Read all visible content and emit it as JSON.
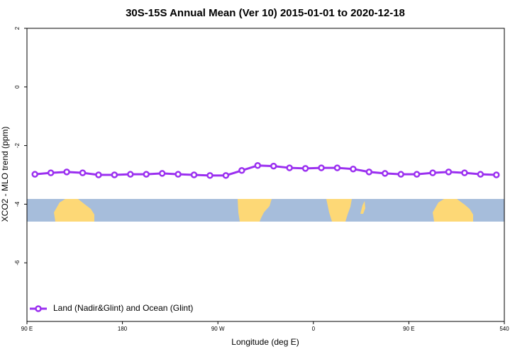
{
  "chart_data": {
    "type": "line",
    "title": "30S-15S Annual Mean (Ver 10)   2015-01-01 to 2020-12-18",
    "xlabel": "Longitude (deg E)",
    "ylabel": "XCO2 - MLO trend (ppm)",
    "x": [
      97.5,
      112.5,
      127.5,
      142.5,
      157.5,
      172.5,
      187.5,
      202.5,
      217.5,
      232.5,
      247.5,
      262.5,
      277.5,
      292.5,
      307.5,
      322.5,
      337.5,
      352.5,
      367.5,
      382.5,
      397.5,
      412.5,
      427.5,
      442.5,
      457.5,
      472.5,
      487.5,
      502.5,
      517.5,
      532.5
    ],
    "series": [
      {
        "name": "Land (Nadir&Glint) and Ocean (Glint)",
        "color": "#9b30f0",
        "values": [
          -2.98,
          -2.93,
          -2.9,
          -2.93,
          -3.0,
          -3.0,
          -2.98,
          -2.98,
          -2.95,
          -2.98,
          -3.0,
          -3.02,
          -3.02,
          -2.85,
          -2.68,
          -2.7,
          -2.76,
          -2.78,
          -2.76,
          -2.76,
          -2.8,
          -2.9,
          -2.95,
          -2.98,
          -2.98,
          -2.93,
          -2.9,
          -2.93,
          -2.98,
          -3.0
        ]
      }
    ],
    "xlim": [
      90,
      540
    ],
    "xticks": [
      {
        "value": 90,
        "label": "90 E"
      },
      180,
      {
        "value": 270,
        "label": "90 W"
      },
      {
        "value": 360,
        "label": "0"
      },
      {
        "value": 450,
        "label": "90 E"
      },
      540
    ],
    "ylim": [
      -8,
      2
    ],
    "yticks": [
      2,
      0,
      -2,
      -4,
      -6
    ],
    "legend": "bottom-left"
  }
}
